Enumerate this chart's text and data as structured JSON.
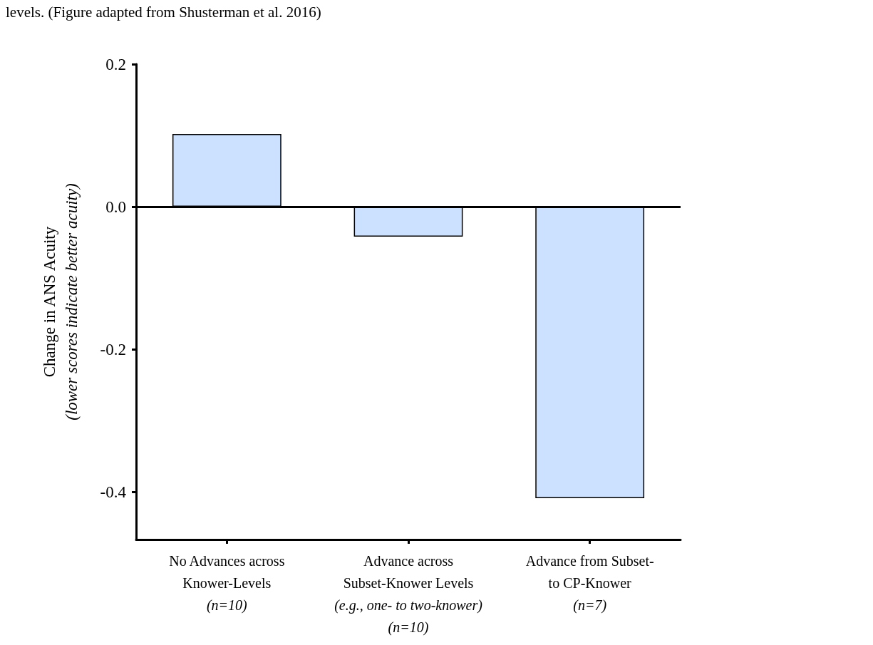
{
  "chart_data": {
    "type": "bar",
    "annotations": [
      "levels. (Figure adapted from Shusterman et al. 2016)"
    ],
    "ylabel": "Change in ANS Acuity\n(lower scores indicate better acuity)",
    "categories": [
      "No Advances across\nKnower-Levels\n(n=10)",
      "Advance across\nSubset-Knower Levels\n(e.g., one- to two-knower)\n(n=10)",
      "Advance from Subset-\nto CP-Knower\n(n=7)"
    ],
    "values": [
      0.102,
      -0.042,
      -0.409
    ],
    "color": "#cce0ff",
    "ylim": [
      -0.467,
      0.2
    ],
    "yticks": [
      {
        "value": 0.2,
        "label": "0.2"
      },
      {
        "value": 0,
        "label": "0.0"
      },
      {
        "value": -0.2,
        "label": "-0.2"
      },
      {
        "value": -0.4,
        "label": "-0.4"
      }
    ],
    "ref_lines": [
      {
        "axis": "y",
        "value": 0,
        "color": "#000000"
      }
    ],
    "grid": false
  }
}
